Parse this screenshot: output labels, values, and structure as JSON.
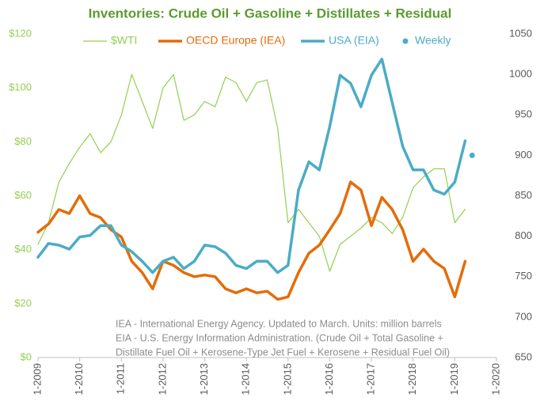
{
  "chart_data": {
    "type": "line",
    "title": "Inventories: Crude Oil + Gasoline + Distillates + Residual",
    "annotations": [
      "IEA - International Energy Agency. Updated to March. Units: million barrels",
      "EIA - U.S. Energy Information Administration. (Crude Oil + Total Gasoline +",
      "Distillate Fuel Oil + Kerosene-Type Jet Fuel + Kerosene + Residual Fuel Oil)"
    ],
    "x": [
      "1-2009",
      "4-2009",
      "7-2009",
      "10-2009",
      "1-2010",
      "4-2010",
      "7-2010",
      "10-2010",
      "1-2011",
      "4-2011",
      "7-2011",
      "10-2011",
      "1-2012",
      "4-2012",
      "7-2012",
      "10-2012",
      "1-2013",
      "4-2013",
      "7-2013",
      "10-2013",
      "1-2014",
      "4-2014",
      "7-2014",
      "10-2014",
      "1-2015",
      "4-2015",
      "7-2015",
      "10-2015",
      "1-2016",
      "4-2016",
      "7-2016",
      "10-2016",
      "1-2017",
      "4-2017",
      "7-2017",
      "10-2017",
      "1-2018",
      "4-2018",
      "7-2018",
      "10-2018",
      "1-2019",
      "4-2019"
    ],
    "xlim": [
      "1-2009",
      "1-2020"
    ],
    "xticks": [
      "1-2009",
      "1-2010",
      "1-2011",
      "1-2012",
      "1-2013",
      "1-2014",
      "1-2015",
      "1-2016",
      "1-2017",
      "1-2018",
      "1-2019",
      "1-2020"
    ],
    "ylim": [
      0,
      120
    ],
    "yticks": [
      {
        "value": 0,
        "label": "$0"
      },
      {
        "value": 20,
        "label": "$20"
      },
      {
        "value": 40,
        "label": "$40"
      },
      {
        "value": 60,
        "label": "$60"
      },
      {
        "value": 80,
        "label": "$80"
      },
      {
        "value": 100,
        "label": "$100"
      },
      {
        "value": 120,
        "label": "$120"
      }
    ],
    "y2lim": [
      650,
      1050
    ],
    "y2ticks": [
      650,
      700,
      750,
      800,
      850,
      900,
      950,
      1000,
      1050
    ],
    "grid": false,
    "legend": "top",
    "series": [
      {
        "name": "$WTI",
        "color": "#92d050",
        "style": "line",
        "line_width": 1.2,
        "values": [
          42,
          50,
          65,
          72,
          78,
          83,
          76,
          80,
          90,
          105,
          95,
          85,
          100,
          105,
          88,
          90,
          95,
          93,
          104,
          102,
          95,
          102,
          103,
          85,
          50,
          55,
          50,
          45,
          32,
          42,
          45,
          48,
          52,
          50,
          46,
          52,
          63,
          67,
          70,
          70,
          50,
          55
        ]
      },
      {
        "name": "OECD Europe (IEA)",
        "color": "#e46c0a",
        "style": "line",
        "line_width": 3.5,
        "axis": "y2",
        "values": [
          805,
          815,
          833,
          828,
          850,
          828,
          823,
          808,
          799,
          769,
          755,
          735,
          769,
          764,
          755,
          750,
          752,
          750,
          735,
          730,
          735,
          730,
          732,
          722,
          725,
          755,
          779,
          789,
          808,
          828,
          867,
          857,
          813,
          848,
          833,
          808,
          769,
          784,
          769,
          760,
          725,
          769
        ]
      },
      {
        "name": "USA (EIA)",
        "color": "#4bacc6",
        "style": "line",
        "line_width": 3.5,
        "axis": "y2",
        "values": [
          774,
          791,
          789,
          784,
          799,
          801,
          813,
          813,
          789,
          781,
          769,
          755,
          769,
          774,
          760,
          769,
          789,
          787,
          779,
          764,
          760,
          769,
          769,
          755,
          764,
          857,
          892,
          882,
          936,
          999,
          989,
          960,
          999,
          1019,
          965,
          911,
          882,
          882,
          857,
          852,
          867,
          918
        ]
      },
      {
        "name": "Weekly",
        "color": "#4bacc6",
        "style": "marker",
        "axis": "y2",
        "x": [
          "6-2019"
        ],
        "values": [
          900
        ]
      }
    ]
  }
}
